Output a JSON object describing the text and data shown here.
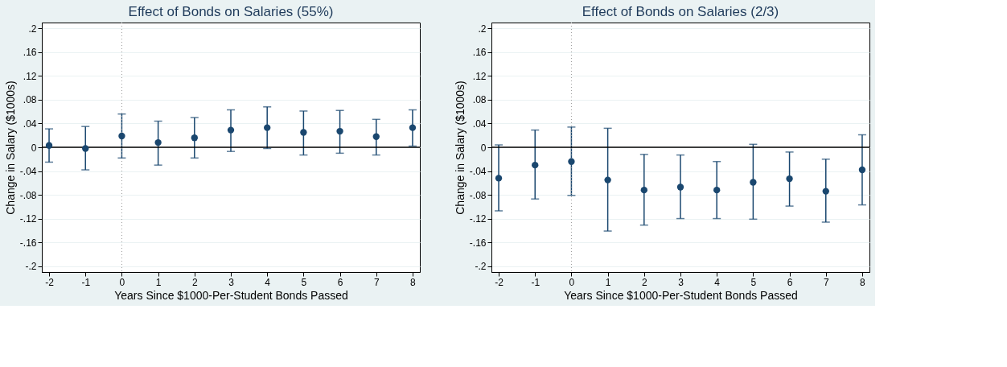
{
  "chart_data": [
    {
      "type": "scatter",
      "title": "Effect of Bonds on Salaries (55%)",
      "xlabel": "Years Since $1000-Per-Student Bonds Passed",
      "ylabel": "Change in Salary ($1000s)",
      "x": [
        -2,
        -1,
        0,
        1,
        2,
        3,
        4,
        5,
        6,
        7,
        8
      ],
      "series": [
        {
          "color": "#1a476f",
          "values": [
            0.003,
            -0.002,
            0.019,
            0.008,
            0.016,
            0.029,
            0.033,
            0.025,
            0.027,
            0.018,
            0.033
          ],
          "errors": [
            [
              -0.025,
              0.031
            ],
            [
              -0.038,
              0.035
            ],
            [
              -0.018,
              0.056
            ],
            [
              -0.03,
              0.044
            ],
            [
              -0.018,
              0.05
            ],
            [
              -0.007,
              0.063
            ],
            [
              -0.002,
              0.068
            ],
            [
              -0.013,
              0.061
            ],
            [
              -0.01,
              0.062
            ],
            [
              -0.013,
              0.047
            ],
            [
              0.002,
              0.063
            ]
          ]
        }
      ],
      "xlim": [
        -2.2,
        8.2
      ],
      "xticks": [
        -2,
        -1,
        0,
        1,
        2,
        3,
        4,
        5,
        6,
        7,
        8
      ],
      "ylim": [
        -0.21,
        0.21
      ],
      "yticks": [
        {
          "value": -0.2,
          "label": "-.2"
        },
        {
          "value": -0.16,
          "label": "-.16"
        },
        {
          "value": -0.12,
          "label": "-.12"
        },
        {
          "value": -0.08,
          "label": "-.08"
        },
        {
          "value": -0.04,
          "label": "-.04"
        },
        0,
        {
          "value": 0.04,
          "label": ".04"
        },
        {
          "value": 0.08,
          "label": ".08"
        },
        {
          "value": 0.12,
          "label": ".12"
        },
        {
          "value": 0.16,
          "label": ".16"
        },
        {
          "value": 0.2,
          "label": ".2"
        }
      ],
      "ref_lines": [
        {
          "axis": "y",
          "value": 0,
          "color": "#000000",
          "line_style": "solid"
        },
        {
          "axis": "x",
          "value": 0,
          "color": "#999999",
          "line_style": "dotted"
        }
      ],
      "grid": "y",
      "marker": "circle"
    },
    {
      "type": "scatter",
      "title": "Effect of Bonds on Salaries (2/3)",
      "xlabel": "Years Since $1000-Per-Student Bonds Passed",
      "ylabel": "Change in Salary ($1000s)",
      "x": [
        -2,
        -1,
        0,
        1,
        2,
        3,
        4,
        5,
        6,
        7,
        8
      ],
      "series": [
        {
          "color": "#1a476f",
          "values": [
            -0.052,
            -0.03,
            -0.024,
            -0.055,
            -0.072,
            -0.067,
            -0.072,
            -0.059,
            -0.053,
            -0.074,
            -0.038
          ],
          "errors": [
            [
              -0.107,
              0.004
            ],
            [
              -0.087,
              0.029
            ],
            [
              -0.081,
              0.034
            ],
            [
              -0.141,
              0.032
            ],
            [
              -0.131,
              -0.012
            ],
            [
              -0.12,
              -0.013
            ],
            [
              -0.12,
              -0.024
            ],
            [
              -0.121,
              0.005
            ],
            [
              -0.099,
              -0.008
            ],
            [
              -0.126,
              -0.02
            ],
            [
              -0.097,
              0.021
            ]
          ]
        }
      ],
      "xlim": [
        -2.2,
        8.2
      ],
      "xticks": [
        -2,
        -1,
        0,
        1,
        2,
        3,
        4,
        5,
        6,
        7,
        8
      ],
      "ylim": [
        -0.21,
        0.21
      ],
      "yticks": [
        {
          "value": -0.2,
          "label": "-.2"
        },
        {
          "value": -0.16,
          "label": "-.16"
        },
        {
          "value": -0.12,
          "label": "-.12"
        },
        {
          "value": -0.08,
          "label": "-.08"
        },
        {
          "value": -0.04,
          "label": "-.04"
        },
        0,
        {
          "value": 0.04,
          "label": ".04"
        },
        {
          "value": 0.08,
          "label": ".08"
        },
        {
          "value": 0.12,
          "label": ".12"
        },
        {
          "value": 0.16,
          "label": ".16"
        },
        {
          "value": 0.2,
          "label": ".2"
        }
      ],
      "ref_lines": [
        {
          "axis": "y",
          "value": 0,
          "color": "#000000",
          "line_style": "solid"
        },
        {
          "axis": "x",
          "value": 0,
          "color": "#999999",
          "line_style": "dotted"
        }
      ],
      "grid": "y",
      "marker": "circle"
    }
  ]
}
